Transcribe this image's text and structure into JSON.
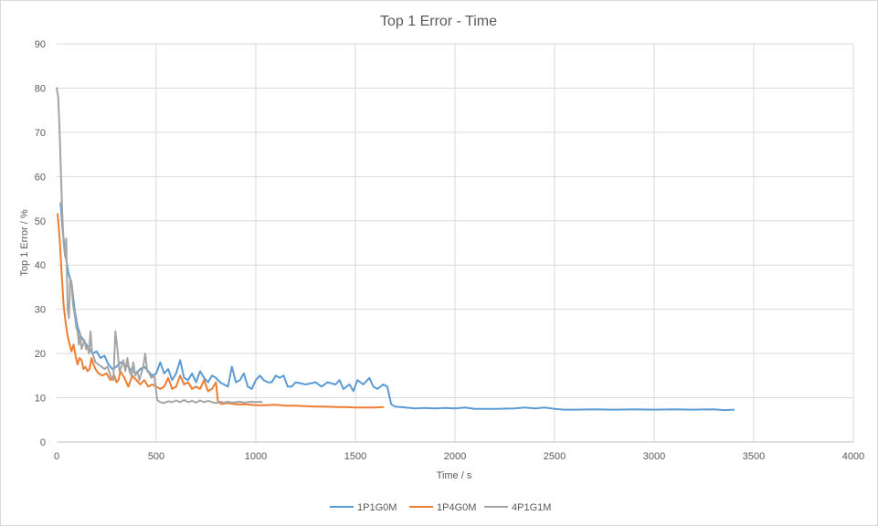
{
  "chart_data": {
    "type": "line",
    "title": "Top 1 Error - Time",
    "xlabel": "Time / s",
    "ylabel": "Top 1 Error / %",
    "xlim": [
      0,
      4000
    ],
    "ylim": [
      0,
      90
    ],
    "xticks": [
      0,
      500,
      1000,
      1500,
      2000,
      2500,
      3000,
      3500,
      4000
    ],
    "yticks": [
      0,
      10,
      20,
      30,
      40,
      50,
      60,
      70,
      80,
      90
    ],
    "grid": "horizontal",
    "legend_position": "bottom",
    "series": [
      {
        "name": "1P1G0M",
        "color": "#5B9BD5",
        "points": [
          [
            20,
            54
          ],
          [
            30,
            48
          ],
          [
            45,
            42
          ],
          [
            60,
            38
          ],
          [
            75,
            36
          ],
          [
            90,
            30
          ],
          [
            105,
            26
          ],
          [
            120,
            24
          ],
          [
            135,
            23
          ],
          [
            150,
            22
          ],
          [
            165,
            21
          ],
          [
            180,
            20
          ],
          [
            200,
            20.5
          ],
          [
            220,
            19
          ],
          [
            240,
            19.5
          ],
          [
            260,
            17.5
          ],
          [
            280,
            16.5
          ],
          [
            300,
            17
          ],
          [
            320,
            18
          ],
          [
            340,
            17.5
          ],
          [
            360,
            17
          ],
          [
            380,
            16
          ],
          [
            400,
            15.5
          ],
          [
            420,
            16.5
          ],
          [
            440,
            17
          ],
          [
            460,
            16
          ],
          [
            480,
            15
          ],
          [
            500,
            15.5
          ],
          [
            520,
            18
          ],
          [
            540,
            15.5
          ],
          [
            560,
            16.5
          ],
          [
            580,
            14
          ],
          [
            600,
            15.5
          ],
          [
            620,
            18.5
          ],
          [
            640,
            14.5
          ],
          [
            660,
            14
          ],
          [
            680,
            15.5
          ],
          [
            700,
            13.5
          ],
          [
            720,
            16
          ],
          [
            740,
            14.5
          ],
          [
            760,
            13.5
          ],
          [
            780,
            15
          ],
          [
            800,
            14.5
          ],
          [
            820,
            13.5
          ],
          [
            840,
            13
          ],
          [
            860,
            12.5
          ],
          [
            880,
            17
          ],
          [
            900,
            13.5
          ],
          [
            920,
            14
          ],
          [
            940,
            15.5
          ],
          [
            960,
            12.5
          ],
          [
            980,
            12
          ],
          [
            1000,
            14
          ],
          [
            1020,
            15
          ],
          [
            1040,
            14
          ],
          [
            1060,
            13.5
          ],
          [
            1080,
            13.5
          ],
          [
            1100,
            15
          ],
          [
            1120,
            14.5
          ],
          [
            1140,
            15
          ],
          [
            1160,
            12.5
          ],
          [
            1180,
            12.5
          ],
          [
            1200,
            13.5
          ],
          [
            1250,
            13
          ],
          [
            1300,
            13.5
          ],
          [
            1330,
            12.5
          ],
          [
            1360,
            13.5
          ],
          [
            1400,
            13
          ],
          [
            1420,
            14
          ],
          [
            1440,
            12
          ],
          [
            1470,
            13
          ],
          [
            1490,
            11.5
          ],
          [
            1510,
            14
          ],
          [
            1540,
            13
          ],
          [
            1570,
            14.5
          ],
          [
            1590,
            12.5
          ],
          [
            1610,
            12
          ],
          [
            1640,
            13
          ],
          [
            1660,
            12.5
          ],
          [
            1680,
            8.5
          ],
          [
            1700,
            8
          ],
          [
            1750,
            7.8
          ],
          [
            1800,
            7.6
          ],
          [
            1850,
            7.7
          ],
          [
            1900,
            7.6
          ],
          [
            1950,
            7.7
          ],
          [
            2000,
            7.6
          ],
          [
            2050,
            7.8
          ],
          [
            2100,
            7.5
          ],
          [
            2200,
            7.5
          ],
          [
            2300,
            7.6
          ],
          [
            2350,
            7.8
          ],
          [
            2400,
            7.6
          ],
          [
            2450,
            7.8
          ],
          [
            2500,
            7.5
          ],
          [
            2550,
            7.3
          ],
          [
            2600,
            7.3
          ],
          [
            2700,
            7.4
          ],
          [
            2800,
            7.3
          ],
          [
            2900,
            7.4
          ],
          [
            3000,
            7.3
          ],
          [
            3100,
            7.4
          ],
          [
            3200,
            7.3
          ],
          [
            3300,
            7.4
          ],
          [
            3350,
            7.2
          ],
          [
            3400,
            7.3
          ]
        ]
      },
      {
        "name": "1P4G0M",
        "color": "#ED7D31",
        "points": [
          [
            5,
            51.5
          ],
          [
            15,
            46
          ],
          [
            25,
            38
          ],
          [
            35,
            31
          ],
          [
            45,
            27
          ],
          [
            55,
            24
          ],
          [
            65,
            22
          ],
          [
            75,
            20.5
          ],
          [
            85,
            22
          ],
          [
            95,
            19.5
          ],
          [
            105,
            17.5
          ],
          [
            115,
            19
          ],
          [
            125,
            18.5
          ],
          [
            135,
            16.5
          ],
          [
            145,
            17
          ],
          [
            155,
            16
          ],
          [
            165,
            16.5
          ],
          [
            175,
            19
          ],
          [
            185,
            17.5
          ],
          [
            195,
            16.5
          ],
          [
            210,
            15.5
          ],
          [
            230,
            15
          ],
          [
            250,
            15.5
          ],
          [
            270,
            14
          ],
          [
            290,
            15
          ],
          [
            300,
            13.5
          ],
          [
            310,
            14
          ],
          [
            320,
            16
          ],
          [
            340,
            14.5
          ],
          [
            360,
            12.5
          ],
          [
            380,
            15
          ],
          [
            400,
            14
          ],
          [
            420,
            13
          ],
          [
            440,
            14
          ],
          [
            460,
            12.5
          ],
          [
            480,
            13
          ],
          [
            500,
            12.5
          ],
          [
            520,
            12
          ],
          [
            540,
            12.5
          ],
          [
            560,
            14.5
          ],
          [
            580,
            12
          ],
          [
            600,
            12.5
          ],
          [
            620,
            15
          ],
          [
            640,
            13
          ],
          [
            660,
            13.5
          ],
          [
            680,
            12
          ],
          [
            700,
            12.5
          ],
          [
            720,
            12
          ],
          [
            740,
            14
          ],
          [
            760,
            11.5
          ],
          [
            780,
            12
          ],
          [
            800,
            13.5
          ],
          [
            810,
            9
          ],
          [
            830,
            8.6
          ],
          [
            860,
            8.8
          ],
          [
            900,
            8.5
          ],
          [
            950,
            8.5
          ],
          [
            1000,
            8.3
          ],
          [
            1050,
            8.3
          ],
          [
            1100,
            8.4
          ],
          [
            1150,
            8.2
          ],
          [
            1200,
            8.2
          ],
          [
            1250,
            8.1
          ],
          [
            1300,
            8.0
          ],
          [
            1350,
            8.0
          ],
          [
            1400,
            7.9
          ],
          [
            1450,
            7.9
          ],
          [
            1500,
            7.8
          ],
          [
            1550,
            7.8
          ],
          [
            1600,
            7.8
          ],
          [
            1640,
            7.9
          ]
        ]
      },
      {
        "name": "4P1G1M",
        "color": "#A5A5A5",
        "points": [
          [
            0,
            80
          ],
          [
            8,
            78
          ],
          [
            15,
            70
          ],
          [
            22,
            60
          ],
          [
            28,
            52
          ],
          [
            35,
            45
          ],
          [
            42,
            42
          ],
          [
            48,
            46
          ],
          [
            55,
            30
          ],
          [
            62,
            28
          ],
          [
            68,
            37
          ],
          [
            75,
            36
          ],
          [
            82,
            31
          ],
          [
            90,
            29
          ],
          [
            98,
            26
          ],
          [
            105,
            25
          ],
          [
            112,
            22
          ],
          [
            118,
            24.5
          ],
          [
            125,
            21
          ],
          [
            132,
            22
          ],
          [
            140,
            23
          ],
          [
            148,
            21
          ],
          [
            155,
            21.5
          ],
          [
            162,
            20
          ],
          [
            170,
            25
          ],
          [
            178,
            20
          ],
          [
            185,
            19.5
          ],
          [
            195,
            18
          ],
          [
            210,
            17.5
          ],
          [
            225,
            17
          ],
          [
            240,
            16.5
          ],
          [
            255,
            17
          ],
          [
            270,
            15
          ],
          [
            285,
            14
          ],
          [
            295,
            25
          ],
          [
            305,
            21
          ],
          [
            315,
            16
          ],
          [
            325,
            17
          ],
          [
            335,
            18.5
          ],
          [
            345,
            16
          ],
          [
            355,
            19
          ],
          [
            365,
            16
          ],
          [
            375,
            15
          ],
          [
            385,
            18
          ],
          [
            395,
            15
          ],
          [
            405,
            16
          ],
          [
            415,
            14
          ],
          [
            425,
            15.5
          ],
          [
            435,
            17
          ],
          [
            445,
            20
          ],
          [
            455,
            16
          ],
          [
            465,
            15.5
          ],
          [
            475,
            14.5
          ],
          [
            490,
            15
          ],
          [
            505,
            9.5
          ],
          [
            520,
            9
          ],
          [
            540,
            8.8
          ],
          [
            560,
            9.2
          ],
          [
            580,
            9
          ],
          [
            600,
            9.4
          ],
          [
            620,
            9
          ],
          [
            640,
            9.5
          ],
          [
            660,
            9
          ],
          [
            680,
            9.3
          ],
          [
            700,
            8.9
          ],
          [
            720,
            9.4
          ],
          [
            740,
            9
          ],
          [
            760,
            9.3
          ],
          [
            780,
            9
          ],
          [
            800,
            8.8
          ],
          [
            820,
            9.1
          ],
          [
            840,
            8.9
          ],
          [
            860,
            9.1
          ],
          [
            880,
            8.9
          ],
          [
            900,
            9
          ],
          [
            920,
            9.1
          ],
          [
            940,
            8.9
          ],
          [
            960,
            9
          ],
          [
            980,
            9.1
          ],
          [
            1000,
            9
          ],
          [
            1020,
            9.1
          ],
          [
            1030,
            9.0
          ]
        ]
      }
    ]
  }
}
